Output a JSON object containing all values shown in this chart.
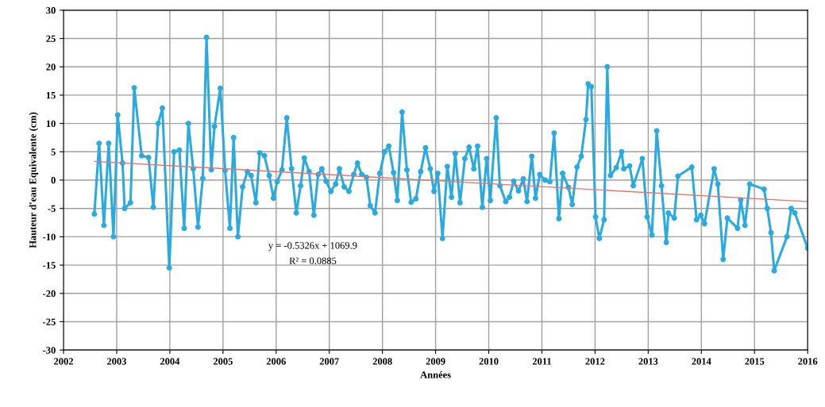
{
  "chart_data": {
    "type": "line",
    "xlabel": "Années",
    "ylabel": "Hauteur d'eau Equivalente (cm)",
    "xlim": [
      2002,
      2016
    ],
    "xticks": [
      2002,
      2003,
      2004,
      2005,
      2006,
      2007,
      2008,
      2009,
      2010,
      2011,
      2012,
      2013,
      2014,
      2015,
      2016
    ],
    "ylim": [
      -30,
      30
    ],
    "yticks": [
      -30,
      -25,
      -20,
      -15,
      -10,
      -5,
      0,
      5,
      10,
      15,
      20,
      25,
      30
    ],
    "grid": true,
    "marker": "circle",
    "line_style": "solid",
    "annotations": [
      "y = -0.5326x + 1069.9",
      "R² = 0.0885"
    ],
    "series": [
      {
        "color": "#29abe2",
        "x": [
          2002.58,
          2002.67,
          2002.76,
          2002.85,
          2002.94,
          2003.02,
          2003.11,
          2003.15,
          2003.26,
          2003.33,
          2003.47,
          2003.6,
          2003.69,
          2003.78,
          2003.86,
          2003.99,
          2004.08,
          2004.18,
          2004.27,
          2004.35,
          2004.44,
          2004.53,
          2004.62,
          2004.69,
          2004.78,
          2004.84,
          2004.95,
          2005.04,
          2005.13,
          2005.2,
          2005.28,
          2005.37,
          2005.46,
          2005.53,
          2005.62,
          2005.69,
          2005.78,
          2005.87,
          2005.95,
          2006.02,
          2006.11,
          2006.2,
          2006.29,
          2006.38,
          2006.46,
          2006.53,
          2006.62,
          2006.71,
          2006.79,
          2006.86,
          2006.94,
          2007.03,
          2007.12,
          2007.19,
          2007.28,
          2007.37,
          2007.46,
          2007.53,
          2007.61,
          2007.7,
          2007.77,
          2007.86,
          2007.95,
          2008.04,
          2008.12,
          2008.21,
          2008.28,
          2008.37,
          2008.46,
          2008.54,
          2008.63,
          2008.72,
          2008.81,
          2008.9,
          2008.97,
          2009.04,
          2009.13,
          2009.22,
          2009.3,
          2009.37,
          2009.46,
          2009.55,
          2009.63,
          2009.72,
          2009.79,
          2009.88,
          2009.96,
          2010.03,
          2010.14,
          2010.21,
          2010.32,
          2010.39,
          2010.47,
          2010.56,
          2010.65,
          2010.72,
          2010.81,
          2010.88,
          2010.96,
          2011.06,
          2011.15,
          2011.23,
          2011.32,
          2011.39,
          2011.5,
          2011.57,
          2011.66,
          2011.74,
          2011.83,
          2011.87,
          2011.93,
          2012.01,
          2012.08,
          2012.17,
          2012.23,
          2012.29,
          2012.4,
          2012.5,
          2012.54,
          2012.65,
          2012.72,
          2012.89,
          2012.98,
          2013.07,
          2013.16,
          2013.25,
          2013.34,
          2013.38,
          2013.49,
          2013.56,
          2013.82,
          2013.91,
          2013.99,
          2014.06,
          2014.24,
          2014.31,
          2014.41,
          2014.49,
          2014.68,
          2014.74,
          2014.82,
          2014.91,
          2015.18,
          2015.24,
          2015.31,
          2015.37,
          2015.61,
          2015.69,
          2015.76,
          2016.0
        ],
        "values": [
          -6,
          6.5,
          -8,
          6.5,
          -10,
          11.5,
          3,
          -5,
          -4,
          16.3,
          4.3,
          4,
          -4.8,
          10,
          12.7,
          -15.5,
          5,
          5.3,
          -8.5,
          10,
          2,
          -8.3,
          0.3,
          25.2,
          1.8,
          9.5,
          16.2,
          1.7,
          -8.5,
          7.5,
          -10,
          -1.2,
          1.5,
          0.8,
          -4,
          4.8,
          4.3,
          0.8,
          -3.2,
          -0.3,
          1.8,
          11,
          2,
          -5.8,
          -1,
          3.9,
          1.5,
          -6.2,
          1,
          2,
          -0.2,
          -2,
          -0.7,
          2,
          -1.2,
          -2,
          1,
          3,
          1,
          0.5,
          -4.5,
          -5.8,
          1.2,
          5,
          6,
          1.3,
          -3.6,
          12,
          1.8,
          -3.9,
          -3.3,
          1.5,
          5.7,
          2,
          -2,
          1.2,
          -10.3,
          2.4,
          -3,
          4.7,
          -4,
          3.8,
          5.8,
          2,
          6,
          -4.8,
          3.8,
          -3.6,
          11,
          -1,
          -3.8,
          -3,
          -0.2,
          -1.9,
          0.2,
          -3.8,
          4.2,
          -3.2,
          1,
          0,
          -0.3,
          8.3,
          -6.8,
          1.2,
          -1.3,
          -4.3,
          2.3,
          4.2,
          10.7,
          17,
          16.5,
          -6.5,
          -10.3,
          -7,
          20,
          0.8,
          2.2,
          5,
          2,
          2.5,
          -1,
          3.8,
          -6.5,
          -9.7,
          8.7,
          -1,
          -11,
          -5.8,
          -6.7,
          0.7,
          2.3,
          -7,
          -6.2,
          -7.7,
          2,
          -0.7,
          -14,
          -6.7,
          -8.5,
          -3.5,
          -8,
          -0.7,
          -1.6,
          -5,
          -9.3,
          -16,
          -10,
          -5,
          -5.8,
          -12
        ]
      },
      {
        "type": "line",
        "marker": "none",
        "color": "#e8736f",
        "x": [
          2002.58,
          2016.0
        ],
        "values": [
          3.3,
          -3.8
        ]
      }
    ]
  }
}
